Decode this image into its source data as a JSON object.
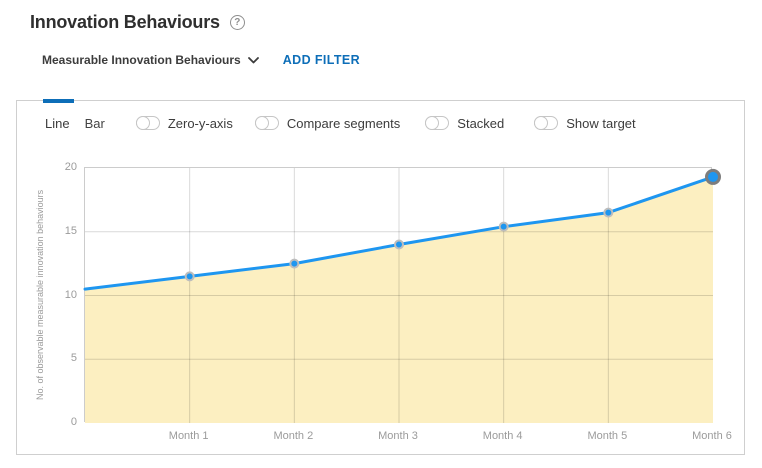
{
  "header": {
    "title": "Innovation Behaviours",
    "help_icon": "?"
  },
  "filter_bar": {
    "metric_selector": "Measurable Innovation Behaviours",
    "add_filter_label": "ADD FILTER"
  },
  "toolbar": {
    "tabs": [
      {
        "label": "Line",
        "active": true
      },
      {
        "label": "Bar",
        "active": false
      }
    ],
    "toggles": [
      {
        "label": "Zero-y-axis",
        "on": false
      },
      {
        "label": "Compare segments",
        "on": false
      },
      {
        "label": "Stacked",
        "on": false
      },
      {
        "label": "Show target",
        "on": false
      }
    ]
  },
  "chart_data": {
    "type": "line",
    "categories": [
      "",
      "Month 1",
      "Month 2",
      "Month 3",
      "Month 4",
      "Month 5",
      "Month 6"
    ],
    "values": [
      10.5,
      11.5,
      12.5,
      14,
      15.4,
      16.5,
      19.3
    ],
    "title": "",
    "xlabel": "",
    "ylabel": "No. of observable measurable innovation behaviours",
    "ylim": [
      0,
      20
    ],
    "yticks": [
      0,
      5,
      10,
      15,
      20
    ],
    "grid": true,
    "legend": "none",
    "area_fill_to_zero": true,
    "marker_indices": [
      1,
      2,
      3,
      4,
      5,
      6
    ],
    "emphasized_marker_index": 6,
    "colors": {
      "line": "#1e96f0",
      "area_fill": "#fcefc1",
      "marker_fill": "#1e96f0",
      "marker_ring": "#bdbdbd",
      "emphasis_ring": "#7d7d7d",
      "gridline": "rgba(0,0,0,0.15)"
    }
  }
}
